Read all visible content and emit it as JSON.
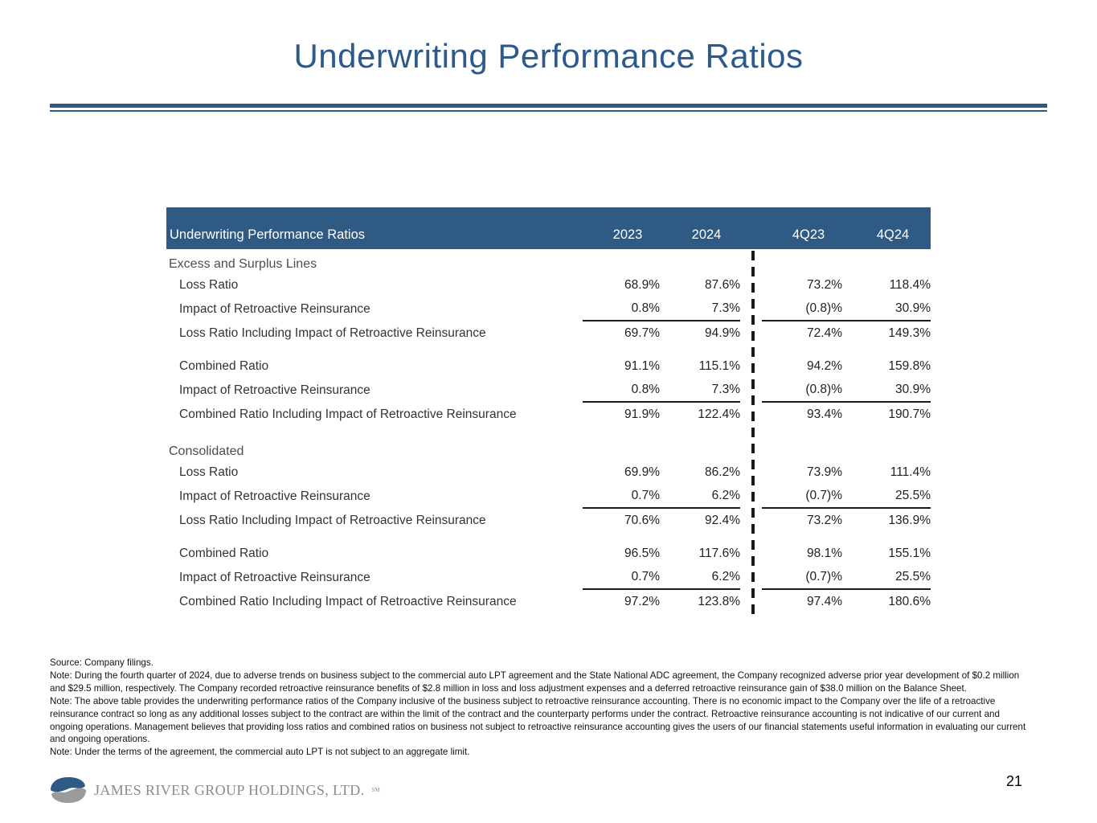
{
  "slide": {
    "title": "Underwriting Performance Ratios",
    "page_number": "21"
  },
  "colors": {
    "accent_blue": "#2c5a8c",
    "header_bar_blue": "#2e5a84",
    "header_text": "#ffffff",
    "section_text": "#4d4d4d",
    "body_text": "#1f1f1f",
    "logo_gray": "#8b8b8f",
    "logo_blue": "#2e5a84"
  },
  "table": {
    "header": {
      "label": "Underwriting Performance Ratios",
      "columns": [
        "2023",
        "2024",
        "4Q23",
        "4Q24"
      ]
    },
    "sections": [
      {
        "name": "Excess and Surplus Lines",
        "groups": [
          {
            "rows": [
              {
                "label": "Loss Ratio",
                "values": [
                  "68.9%",
                  "87.6%",
                  "73.2%",
                  "118.4%"
                ],
                "underline": false
              },
              {
                "label": "Impact of Retroactive Reinsurance",
                "values": [
                  "0.8%",
                  "7.3%",
                  "(0.8)%",
                  "30.9%"
                ],
                "underline": true
              },
              {
                "label": "Loss Ratio Including Impact of Retroactive Reinsurance",
                "values": [
                  "69.7%",
                  "94.9%",
                  "72.4%",
                  "149.3%"
                ],
                "underline": false
              }
            ]
          },
          {
            "rows": [
              {
                "label": "Combined Ratio",
                "values": [
                  "91.1%",
                  "115.1%",
                  "94.2%",
                  "159.8%"
                ],
                "underline": false
              },
              {
                "label": "Impact of Retroactive Reinsurance",
                "values": [
                  "0.8%",
                  "7.3%",
                  "(0.8)%",
                  "30.9%"
                ],
                "underline": true
              },
              {
                "label": "Combined Ratio Including Impact of Retroactive Reinsurance",
                "values": [
                  "91.9%",
                  "122.4%",
                  "93.4%",
                  "190.7%"
                ],
                "underline": false
              }
            ]
          }
        ]
      },
      {
        "name": "Consolidated",
        "groups": [
          {
            "rows": [
              {
                "label": "Loss Ratio",
                "values": [
                  "69.9%",
                  "86.2%",
                  "73.9%",
                  "111.4%"
                ],
                "underline": false
              },
              {
                "label": "Impact of Retroactive Reinsurance",
                "values": [
                  "0.7%",
                  "6.2%",
                  "(0.7)%",
                  "25.5%"
                ],
                "underline": true
              },
              {
                "label": "Loss Ratio Including Impact of Retroactive Reinsurance",
                "values": [
                  "70.6%",
                  "92.4%",
                  "73.2%",
                  "136.9%"
                ],
                "underline": false
              }
            ]
          },
          {
            "rows": [
              {
                "label": "Combined Ratio",
                "values": [
                  "96.5%",
                  "117.6%",
                  "98.1%",
                  "155.1%"
                ],
                "underline": false
              },
              {
                "label": "Impact of Retroactive Reinsurance",
                "values": [
                  "0.7%",
                  "6.2%",
                  "(0.7)%",
                  "25.5%"
                ],
                "underline": true
              },
              {
                "label": "Combined Ratio Including Impact of Retroactive Reinsurance",
                "values": [
                  "97.2%",
                  "123.8%",
                  "97.4%",
                  "180.6%"
                ],
                "underline": false
              }
            ]
          }
        ]
      }
    ]
  },
  "footnotes": [
    "Source: Company filings.",
    "Note: During the fourth quarter of 2024, due to adverse trends on business subject to the commercial auto LPT agreement and the State National ADC agreement, the Company recognized adverse prior year development of $0.2 million and $29.5 million, respectively. The Company recorded retroactive reinsurance benefits of $2.8 million in loss and loss adjustment expenses and a deferred retroactive reinsurance gain of $38.0 million on the Balance Sheet.",
    "Note: The above table provides the underwriting performance ratios of the Company inclusive of the business subject to retroactive reinsurance accounting. There is no economic impact to the Company over the life of a retroactive reinsurance contract so long as any additional losses subject to the contract are within the limit of the contract and the counterparty performs under the contract. Retroactive reinsurance accounting is not indicative of our current and ongoing operations. Management believes that providing loss ratios and combined ratios on business not subject to retroactive reinsurance accounting gives the users of our financial statements useful information in evaluating our current and ongoing operations.",
    "Note: Under the terms of the agreement, the commercial auto LPT is not subject to an aggregate limit."
  ],
  "logo": {
    "company": "JAMES RIVER GROUP HOLDINGS, LTD.",
    "suffix": "SM"
  }
}
